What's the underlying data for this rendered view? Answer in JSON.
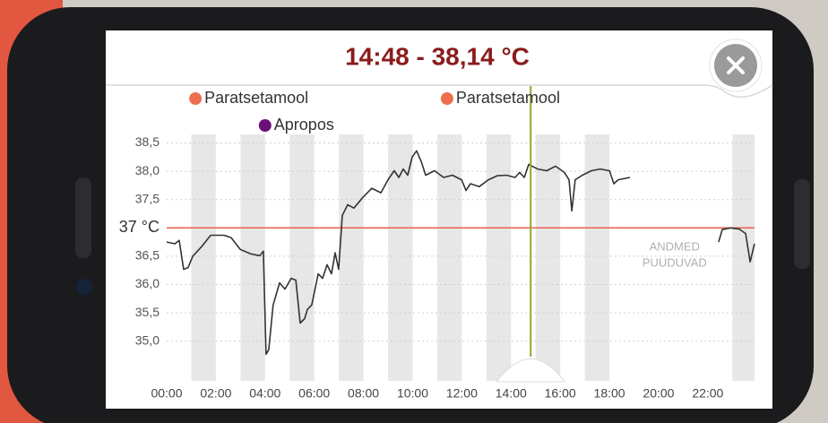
{
  "chart_data": {
    "type": "line",
    "title": "14:48 - 38,14 °C",
    "x": [
      0,
      0.33,
      0.51,
      0.69,
      0.87,
      1.06,
      1.42,
      1.79,
      2.33,
      2.62,
      2.99,
      3.43,
      3.79,
      3.93,
      4.04,
      4.15,
      4.33,
      4.59,
      4.81,
      5.06,
      5.25,
      5.43,
      5.61,
      5.72,
      5.9,
      6.16,
      6.34,
      6.52,
      6.7,
      6.85,
      6.99,
      7.14,
      7.36,
      7.61,
      7.98,
      8.34,
      8.71,
      9.0,
      9.25,
      9.44,
      9.62,
      9.8,
      9.98,
      10.16,
      10.35,
      10.53,
      10.89,
      11.26,
      11.62,
      11.99,
      12.17,
      12.35,
      12.71,
      13.08,
      13.44,
      13.81,
      14.17,
      14.35,
      14.54,
      14.72,
      15.08,
      15.45,
      15.81,
      16.17,
      16.36,
      16.47,
      16.61,
      16.9,
      17.27,
      17.63,
      18.0,
      18.18,
      18.36,
      18.84,
      20.6,
      22.44,
      22.59,
      22.91,
      23.28,
      23.54,
      23.72,
      23.9
    ],
    "series": [
      {
        "color": "#333333",
        "values": [
          36.75,
          36.72,
          36.78,
          36.27,
          36.3,
          36.5,
          36.67,
          36.87,
          36.87,
          36.83,
          36.62,
          36.54,
          36.51,
          36.59,
          34.77,
          34.85,
          35.64,
          36.03,
          35.92,
          36.11,
          36.08,
          35.32,
          35.4,
          35.56,
          35.64,
          36.19,
          36.11,
          36.35,
          36.19,
          36.56,
          36.27,
          37.22,
          37.41,
          37.35,
          37.54,
          37.7,
          37.62,
          37.85,
          38.01,
          37.89,
          38.04,
          37.93,
          38.25,
          38.36,
          38.17,
          37.93,
          38.01,
          37.89,
          37.93,
          37.85,
          37.66,
          37.78,
          37.73,
          37.85,
          37.92,
          37.93,
          37.89,
          37.98,
          37.89,
          38.12,
          38.04,
          38.01,
          38.09,
          37.98,
          37.85,
          37.3,
          37.85,
          37.93,
          38.01,
          38.04,
          38.01,
          37.78,
          37.85,
          37.89,
          null,
          36.75,
          36.97,
          37.0,
          36.98,
          36.9,
          36.4,
          36.72
        ]
      }
    ],
    "xlim": [
      0,
      23.9
    ],
    "xticks": [
      {
        "value": 0,
        "label": "00:00"
      },
      {
        "value": 2,
        "label": "02:00"
      },
      {
        "value": 4,
        "label": "04:00"
      },
      {
        "value": 6,
        "label": "06:00"
      },
      {
        "value": 8,
        "label": "08:00"
      },
      {
        "value": 10,
        "label": "10:00"
      },
      {
        "value": 12,
        "label": "12:00"
      },
      {
        "value": 14,
        "label": "14:00"
      },
      {
        "value": 16,
        "label": "16:00"
      },
      {
        "value": 18,
        "label": "18:00"
      },
      {
        "value": 20,
        "label": "20:00"
      },
      {
        "value": 22,
        "label": "22:00"
      }
    ],
    "ylim": [
      34.3,
      38.65
    ],
    "yticks": [
      {
        "value": 35,
        "label": "35,0"
      },
      {
        "value": 35.5,
        "label": "35,5"
      },
      {
        "value": 36,
        "label": "36,0"
      },
      {
        "value": 36.5,
        "label": "36,5"
      },
      {
        "value": 37,
        "label": "37 °C"
      },
      {
        "value": 37.5,
        "label": "37,5"
      },
      {
        "value": 38,
        "label": "38,0"
      },
      {
        "value": 38.5,
        "label": "38,5"
      }
    ],
    "grid": true,
    "reference_line": {
      "value": 37,
      "color": "#e8604c"
    },
    "cursor": {
      "time": 14.8,
      "color": "#8aab2a"
    },
    "no_data": {
      "range": [
        18.95,
        22.35
      ],
      "label": [
        "ANDMED",
        "PUUDUVAD"
      ]
    },
    "events": [
      {
        "name": "Paratsetamool",
        "time": 1.17,
        "color": "#ee6f4f"
      },
      {
        "name": "Paratsetamool",
        "time": 11.4,
        "color": "#ee6f4f"
      },
      {
        "name": "Apropos",
        "time": 4.0,
        "color": "#6a1178"
      }
    ]
  }
}
